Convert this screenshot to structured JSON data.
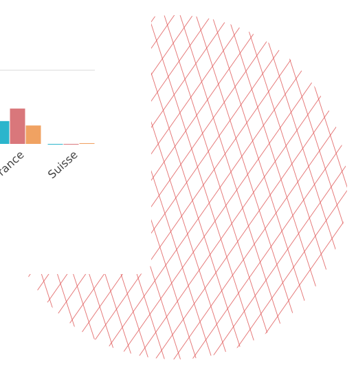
{
  "chart_data": [
    {
      "type": "pie",
      "values": [
        100
      ],
      "color": "#e05a5a",
      "hatch": true
    },
    {
      "type": "bar",
      "categories": [
        "France",
        "Suisse"
      ],
      "series": [
        {
          "color": "#2bb5cc",
          "values": [
            31,
            0
          ]
        },
        {
          "color": "#d9777b",
          "values": [
            48,
            0
          ]
        },
        {
          "color": "#f0a262",
          "values": [
            25,
            1
          ]
        }
      ],
      "ylim": [
        0,
        100
      ],
      "yticks": [
        100
      ],
      "grid": true
    }
  ]
}
